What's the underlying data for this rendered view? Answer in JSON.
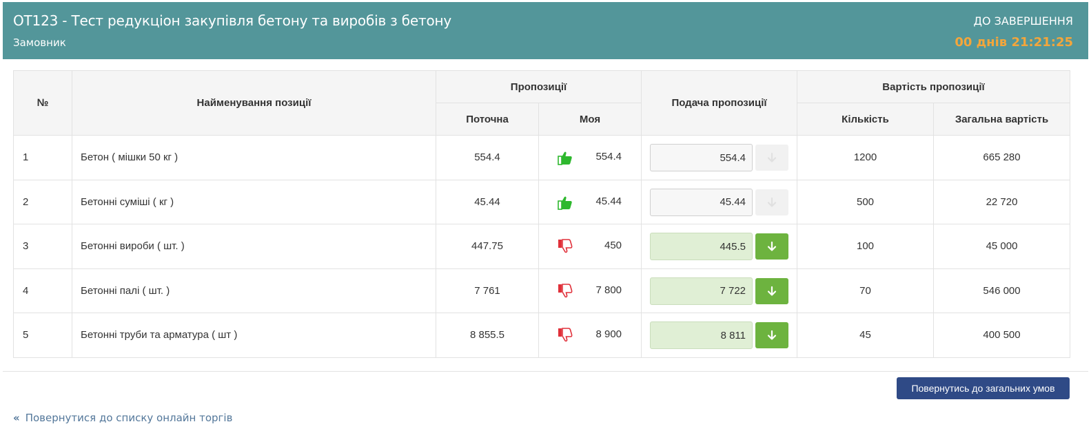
{
  "header": {
    "title": "OT123 - Тест редукціон закупівля бетону та виробів з бетону",
    "subtitle": "Замовник",
    "countdown_label": "ДО ЗАВЕРШЕННЯ",
    "countdown": "00 днів 21:21:25"
  },
  "table": {
    "headers": {
      "num": "№",
      "name": "Найменування позиції",
      "offers": "Пропозиції",
      "current": "Поточна",
      "mine": "Моя",
      "submit": "Подача пропозиції",
      "cost": "Вартість пропозиції",
      "quantity": "Кількість",
      "total": "Загальна вартість"
    },
    "rows": [
      {
        "num": "1",
        "name": "Бетон ( мішки 50 кг )",
        "current": "554.4",
        "mine": "554.4",
        "status": "thumbs-up",
        "bid": "554.4",
        "bid_active": false,
        "quantity": "1200",
        "total": "665 280"
      },
      {
        "num": "2",
        "name": "Бетонні суміші ( кг )",
        "current": "45.44",
        "mine": "45.44",
        "status": "thumbs-up",
        "bid": "45.44",
        "bid_active": false,
        "quantity": "500",
        "total": "22 720"
      },
      {
        "num": "3",
        "name": "Бетонні вироби ( шт. )",
        "current": "447.75",
        "mine": "450",
        "status": "thumbs-down",
        "bid": "445.5",
        "bid_active": true,
        "quantity": "100",
        "total": "45 000"
      },
      {
        "num": "4",
        "name": "Бетонні палі ( шт. )",
        "current": "7 761",
        "mine": "7 800",
        "status": "thumbs-down",
        "bid": "7 722",
        "bid_active": true,
        "quantity": "70",
        "total": "546 000"
      },
      {
        "num": "5",
        "name": "Бетонні труби та арматура ( шт )",
        "current": "8 855.5",
        "mine": "8 900",
        "status": "thumbs-down",
        "bid": "8 811",
        "bid_active": true,
        "quantity": "45",
        "total": "400 500"
      }
    ]
  },
  "actions": {
    "return_button": "Повернутись до загальних умов",
    "back_link": "Повернутися до списку онлайн торгів"
  },
  "colors": {
    "header_bg": "#53969a",
    "countdown": "#f4a63b",
    "thumbs_up": "#2eb82e",
    "thumbs_down": "#e0303a",
    "bid_button": "#6db33f",
    "primary_button": "#2f4a86"
  }
}
